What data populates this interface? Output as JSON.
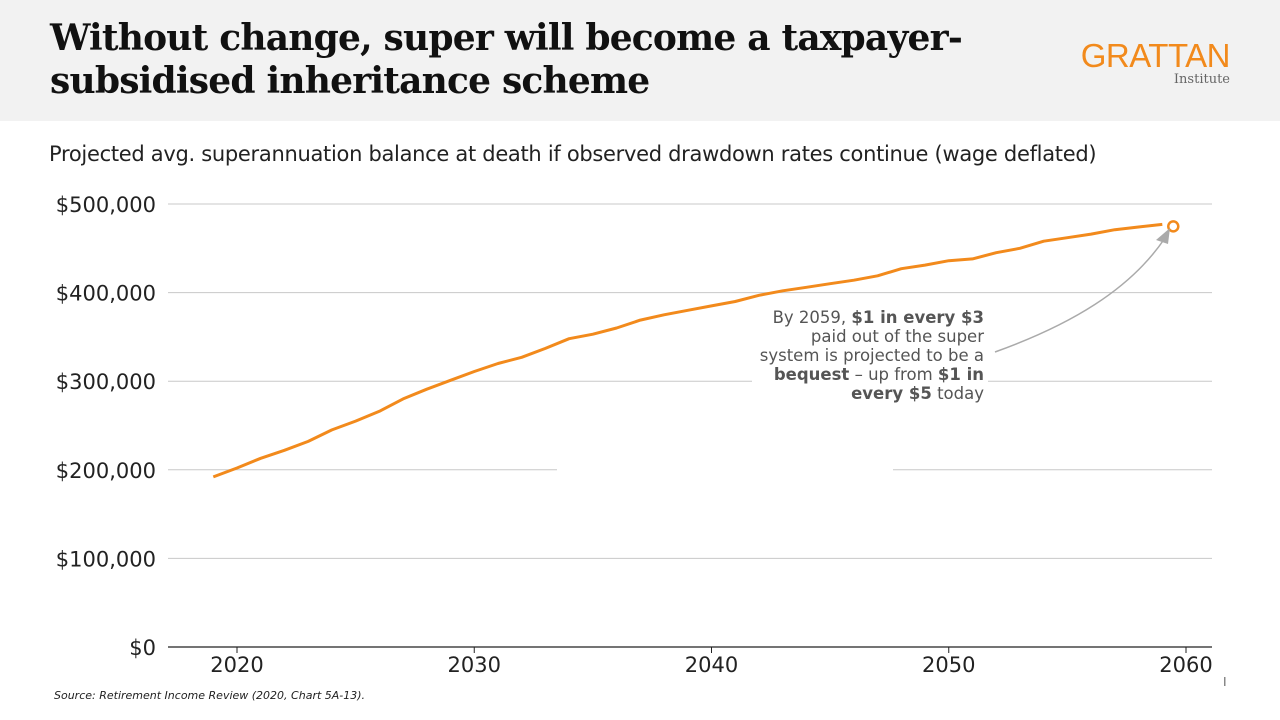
{
  "header": {
    "title": "Without change, super will become a taxpayer-subsidised inheritance scheme",
    "logo": {
      "main": "GRATTAN",
      "sub": "Institute"
    }
  },
  "colors": {
    "line": "#f28a1c",
    "grid": "#c8c8c8",
    "header_bg": "#f2f2f2",
    "arrow": "#aaaaaa"
  },
  "chart_data": {
    "type": "line",
    "title": "Projected avg. superannuation balance at death if observed drawdown rates continue (wage deflated)",
    "xlabel": "",
    "ylabel": "",
    "xlim": [
      2017,
      2061
    ],
    "ylim": [
      0,
      500000
    ],
    "grid": "horizontal",
    "x_ticks": [
      2020,
      2030,
      2040,
      2050,
      2060
    ],
    "x_tick_labels": [
      "2020",
      "2030",
      "2040",
      "2050",
      "2060"
    ],
    "y_ticks": [
      0,
      100000,
      200000,
      300000,
      400000,
      500000
    ],
    "y_tick_labels": [
      "$0",
      "$100,000",
      "$200,000",
      "$300,000",
      "$400,000",
      "$500,000"
    ],
    "x": [
      2019,
      2020,
      2021,
      2022,
      2023,
      2024,
      2025,
      2026,
      2027,
      2028,
      2029,
      2030,
      2031,
      2032,
      2033,
      2034,
      2035,
      2036,
      2037,
      2038,
      2039,
      2040,
      2041,
      2042,
      2043,
      2044,
      2045,
      2046,
      2047,
      2048,
      2049,
      2050,
      2051,
      2052,
      2053,
      2054,
      2055,
      2056,
      2057,
      2058,
      2059
    ],
    "values": [
      192000,
      202000,
      213000,
      222000,
      232000,
      245000,
      255000,
      266000,
      280000,
      291000,
      301000,
      311000,
      320000,
      327000,
      337000,
      348000,
      353000,
      360000,
      369000,
      375000,
      380000,
      385000,
      390000,
      397000,
      402000,
      406000,
      410000,
      414000,
      419000,
      427000,
      431000,
      436000,
      438000,
      445000,
      450000,
      458000,
      462000,
      466000,
      471000,
      474000,
      477000
    ],
    "annotation": {
      "parts": [
        {
          "text": "By 2059, ",
          "bold": false
        },
        {
          "text": "$1 in every $3",
          "bold": true
        },
        {
          "text": " paid out of the super system is projected to be a ",
          "bold": false
        },
        {
          "text": "bequest",
          "bold": true
        },
        {
          "text": " – up from ",
          "bold": false
        },
        {
          "text": "$1 in every $5",
          "bold": true
        },
        {
          "text": " today",
          "bold": false
        }
      ],
      "points_to_x": 2059
    }
  },
  "footer": {
    "source": "Source: Retirement Income Review (2020, Chart 5A-13)."
  }
}
